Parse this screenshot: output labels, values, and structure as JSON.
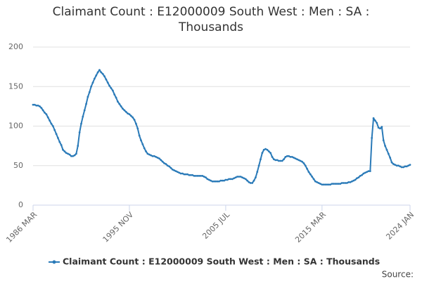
{
  "chart_data": {
    "type": "line",
    "title": "Claimant Count : E12000009 South West : Men : SA : Thousands",
    "source": "Source:",
    "categories": [
      "1986 MAR",
      null,
      null,
      null,
      null,
      null,
      null,
      null,
      null,
      null,
      null,
      null,
      null,
      null,
      null,
      null,
      null,
      null,
      null,
      null,
      null,
      null,
      null,
      null,
      null,
      null,
      null,
      null,
      null,
      null,
      null,
      null,
      null,
      null,
      null,
      null,
      null,
      null,
      null,
      null,
      null,
      null,
      null,
      null,
      null,
      null,
      null,
      null,
      null,
      null,
      null,
      null,
      null,
      null,
      null,
      null,
      null,
      null,
      "1995 NOV",
      null,
      null,
      null,
      null,
      null,
      null,
      null,
      null,
      null,
      null,
      null,
      null,
      null,
      null,
      null,
      null,
      null,
      null,
      null,
      null,
      null,
      null,
      null,
      null,
      null,
      null,
      null,
      null,
      null,
      null,
      null,
      null,
      null,
      null,
      null,
      null,
      null,
      null,
      null,
      null,
      null,
      null,
      null,
      null,
      null,
      null,
      null,
      null,
      null,
      null,
      null,
      null,
      null,
      null,
      null,
      null,
      null,
      "2005 JUL",
      null,
      null,
      null,
      null,
      null,
      null,
      null,
      null,
      null,
      null,
      null,
      null,
      null,
      null,
      null,
      null,
      null,
      null,
      null,
      null,
      null,
      null,
      null,
      null,
      null,
      null,
      null,
      null,
      null,
      null,
      null,
      null,
      null,
      null,
      null,
      null,
      null,
      null,
      null,
      null,
      null,
      null,
      null,
      null,
      null,
      null,
      null,
      null,
      null,
      null,
      null,
      null,
      null,
      null,
      null,
      null,
      null,
      "2015 MAR",
      null,
      null,
      null,
      null,
      null,
      null,
      null,
      null,
      null,
      null,
      null,
      null,
      null,
      null,
      null,
      null,
      null,
      null,
      null,
      null,
      null,
      null,
      null,
      null,
      null,
      null,
      null,
      null,
      null,
      null,
      null,
      null,
      null,
      null,
      null,
      null,
      null,
      null,
      null,
      null,
      null,
      null,
      null,
      null,
      null,
      null,
      null,
      null,
      null,
      null,
      null,
      null,
      "2024 JAN"
    ],
    "series": [
      {
        "name": "Claimant Count : E12000009 South West : Men : SA : Thousands",
        "color": "#2a7ab8",
        "values": [
          127,
          127,
          126,
          126,
          125,
          123,
          120,
          117,
          115,
          111,
          107,
          103,
          100,
          95,
          90,
          85,
          80,
          76,
          70,
          68,
          66,
          65,
          64,
          62,
          62,
          63,
          65,
          75,
          92,
          103,
          112,
          120,
          128,
          137,
          143,
          150,
          155,
          160,
          164,
          168,
          171,
          168,
          166,
          163,
          159,
          155,
          151,
          148,
          145,
          140,
          136,
          131,
          128,
          125,
          122,
          120,
          118,
          116,
          115,
          113,
          111,
          108,
          103,
          97,
          88,
          82,
          77,
          72,
          68,
          65,
          64,
          63,
          62,
          62,
          61,
          60,
          59,
          57,
          55,
          53,
          52,
          50,
          49,
          47,
          45,
          44,
          43,
          42,
          41,
          40,
          40,
          39,
          39,
          39,
          38,
          38,
          38,
          37,
          37,
          37,
          37,
          37,
          37,
          36,
          35,
          33,
          32,
          31,
          30,
          30,
          30,
          30,
          30,
          31,
          31,
          31,
          32,
          32,
          33,
          33,
          33,
          34,
          35,
          36,
          36,
          36,
          35,
          34,
          33,
          31,
          29,
          28,
          28,
          31,
          35,
          42,
          50,
          58,
          66,
          70,
          71,
          70,
          68,
          66,
          61,
          58,
          57,
          57,
          56,
          56,
          56,
          58,
          61,
          62,
          62,
          61,
          61,
          60,
          59,
          58,
          57,
          56,
          55,
          53,
          50,
          46,
          42,
          39,
          36,
          33,
          30,
          29,
          28,
          27,
          26,
          26,
          26,
          26,
          26,
          26,
          27,
          27,
          27,
          27,
          27,
          27,
          28,
          28,
          28,
          28,
          29,
          29,
          30,
          31,
          32,
          34,
          35,
          37,
          38,
          40,
          41,
          42,
          43,
          43,
          85,
          110,
          107,
          104,
          98,
          97,
          99,
          82,
          75,
          70,
          65,
          60,
          54,
          52,
          51,
          50,
          50,
          49,
          48,
          48,
          49,
          49,
          50,
          51
        ]
      }
    ],
    "ylim": [
      0,
      200
    ],
    "yticks": [
      0,
      50,
      100,
      150,
      200
    ],
    "grid": true
  }
}
